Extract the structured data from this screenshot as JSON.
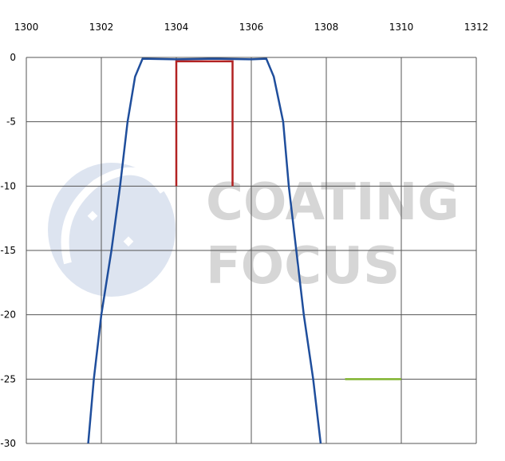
{
  "chart_data": {
    "type": "line",
    "watermark": [
      "COATING",
      "FOCUS"
    ],
    "xlim": [
      1300,
      1312
    ],
    "xticks": [
      1300,
      1302,
      1304,
      1306,
      1308,
      1310,
      1312
    ],
    "ylim": [
      -30,
      0
    ],
    "yticks": [
      0,
      -5,
      -10,
      -15,
      -20,
      -25,
      -30
    ],
    "grid": true,
    "series": [
      {
        "color": "#1f4e9c",
        "x": [
          1301.65,
          1301.8,
          1302.0,
          1302.27,
          1302.5,
          1302.7,
          1302.9,
          1303.1,
          1304,
          1305,
          1306,
          1306.4,
          1306.6,
          1306.85,
          1307.0,
          1307.2,
          1307.4,
          1307.65,
          1307.85
        ],
        "values": [
          -30,
          -25,
          -20,
          -15,
          -10,
          -5,
          -1.5,
          -0.1,
          -0.15,
          -0.1,
          -0.15,
          -0.1,
          -1.5,
          -5,
          -10,
          -15,
          -20,
          -25,
          -30
        ]
      },
      {
        "color": "#b22222",
        "x": [
          1304,
          1304,
          1305.5,
          1305.5
        ],
        "values": [
          -10,
          -0.3,
          -0.3,
          -10
        ]
      },
      {
        "color": "#7fb32e",
        "x": [
          1308.5,
          1310
        ],
        "values": [
          -25,
          -25
        ]
      }
    ]
  }
}
